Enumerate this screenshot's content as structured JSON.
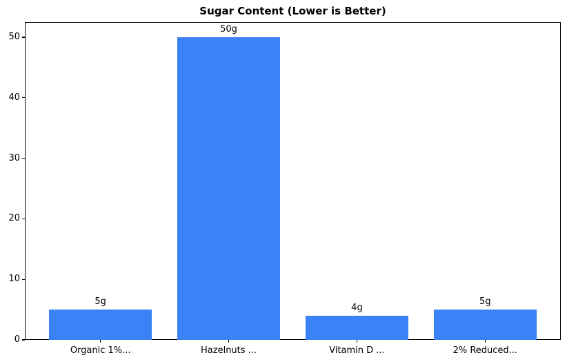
{
  "chart_data": {
    "type": "bar",
    "title": "Sugar Content (Lower is Better)",
    "categories": [
      "Organic 1%...",
      "Hazelnuts ...",
      "Vitamin D ...",
      "2% Reduced..."
    ],
    "values": [
      5,
      50,
      4,
      5
    ],
    "bar_labels": [
      "5g",
      "50g",
      "4g",
      "5g"
    ],
    "xlabel": "",
    "ylabel": "",
    "yticks": [
      0,
      10,
      20,
      30,
      40,
      50
    ],
    "ylim": [
      0,
      52.5
    ],
    "xlim": [
      -0.59,
      3.59
    ],
    "bar_width": 0.8,
    "bar_color": "#3b82f6",
    "axis_color": "#000000",
    "background": "#ffffff",
    "grid": false,
    "legend": "none"
  }
}
